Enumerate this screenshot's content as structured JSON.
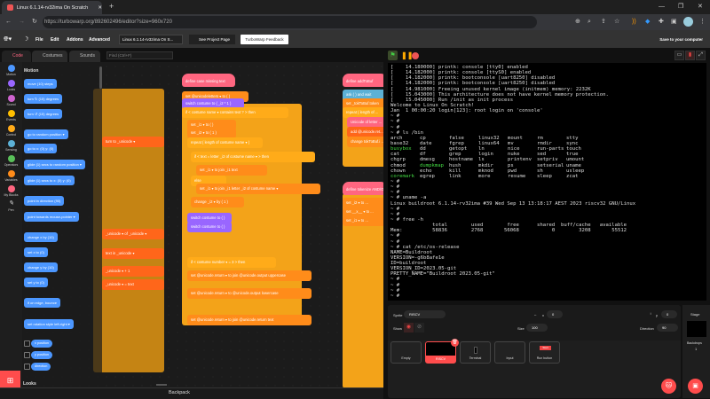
{
  "browser": {
    "tab_title": "Linux 6.1.14-rv32ima On Scratch",
    "url": "https://turbowarp.org/892602496/editor?size=960x720"
  },
  "menubar": {
    "items": [
      "File",
      "Edit",
      "Addons",
      "Advanced"
    ],
    "project_title": "Linux 6.1.14-rv32ima On S...",
    "see_project_page": "See Project Page",
    "feedback": "TurboWarp Feedback",
    "save": "Save to your computer"
  },
  "editor_tabs": [
    "Code",
    "Costumes",
    "Sounds"
  ],
  "find_placeholder": "Find (Ctrl+F)",
  "categories": [
    {
      "label": "Motion",
      "color": "#4c97ff"
    },
    {
      "label": "Looks",
      "color": "#9966ff"
    },
    {
      "label": "Sound",
      "color": "#cf63cf"
    },
    {
      "label": "Events",
      "color": "#ffbf00"
    },
    {
      "label": "Control",
      "color": "#ffab19"
    },
    {
      "label": "Sensing",
      "color": "#5cb1d6"
    },
    {
      "label": "Operators",
      "color": "#59c059"
    },
    {
      "label": "Variables",
      "color": "#ff8c1a"
    },
    {
      "label": "My Blocks",
      "color": "#ff6680"
    },
    {
      "label": "Pen",
      "color": "#0fbd8c"
    }
  ],
  "palette": {
    "section": "Motion",
    "next_section": "Looks",
    "blocks": [
      "move (10) steps",
      "turn ↻ (15) degrees",
      "turn ↺ (15) degrees",
      "go to random position ▾",
      "go to x: (0) y: (0)",
      "glide (1) secs to random position ▾",
      "glide (1) secs to x: (0) y: (0)",
      "point in direction (90)",
      "point towards mouse-pointer ▾",
      "change x by (10)",
      "set x to (0)",
      "change y by (10)",
      "set y to (0)",
      "if on edge, bounce",
      "set rotation style left-right ▾"
    ],
    "reporters": [
      "x position",
      "y position",
      "direction"
    ]
  },
  "code_area": {
    "blocks": [
      {
        "text": "define  case missing  text",
        "category": "custom"
      },
      {
        "text": "set  @unicodeletters ▾  to (  )",
        "category": "variables"
      },
      {
        "text": "switch costume to  ( _i2 * 1 )",
        "category": "looks"
      },
      {
        "text": "if  < costume name ▾  contains  text ? >  then",
        "category": "control"
      },
      {
        "text": "set  _i1 ▾  to (  )",
        "category": "variables"
      },
      {
        "text": "set  _i2 ▾  to ( 1 )",
        "category": "variables"
      },
      {
        "text": "repeat  ( length of  costume name ▾ )",
        "category": "control"
      },
      {
        "text": "if  < text = letter _i2 of costume name ▾ >  then",
        "category": "control"
      },
      {
        "text": "set  _i1 ▾  to  join _i1 text",
        "category": "variables"
      },
      {
        "text": "else",
        "category": "control"
      },
      {
        "text": "set  _i1 ▾  to  join _i1 letter _i2 of costume name ▾",
        "category": "variables"
      },
      {
        "text": "change  _i2 ▾  by ( 1 )",
        "category": "variables"
      },
      {
        "text": "switch costume to  ( )",
        "category": "looks"
      },
      {
        "text": "switch costume to  ( )",
        "category": "looks"
      },
      {
        "text": "if  < costume number ▾ = 3 >  then",
        "category": "control"
      },
      {
        "text": "set  @unicode.return ▾  to  join @unicode.output  uppercase",
        "category": "variables"
      },
      {
        "text": "set  @unicode.return ▾  to  @unicode.output  lowercase",
        "category": "variables"
      },
      {
        "text": "set  @unicode.return ▾  to  join @unicode.return  text",
        "category": "variables"
      },
      {
        "text": "define  addToBuf",
        "category": "custom"
      },
      {
        "text": "ask (  ) and wait",
        "category": "sensing"
      },
      {
        "text": "set  _tokToBuf.token",
        "category": "variables"
      },
      {
        "text": "repeat  ( length of ...",
        "category": "control"
      },
      {
        "text": "Unicode of  letter ...",
        "category": "custom"
      },
      {
        "text": "add  @unicode.ret...",
        "category": "list"
      },
      {
        "text": "change  tokToBuf.i ...",
        "category": "variables"
      },
      {
        "text": "define  tokenize AND/OR",
        "category": "custom"
      },
      {
        "text": "set  _i2 ▾  to ...",
        "category": "variables"
      },
      {
        "text": "set  __x__ ▾  to ...",
        "category": "variables"
      },
      {
        "text": "set  _i1 ▾  to ...",
        "category": "variables"
      },
      {
        "text": "turn  to  _unicode ▾",
        "category": "list"
      },
      {
        "text": "_unicode ▾  of  _unicode ▾",
        "category": "list"
      },
      {
        "text": "text  in  _unicode ▾",
        "category": "list"
      },
      {
        "text": "_unicode ▾  +  1",
        "category": "list"
      },
      {
        "text": "_unicode ▾  =  text",
        "category": "list"
      }
    ],
    "backpack": "Backpack"
  },
  "category_colors": {
    "custom": "#ff6680",
    "variables": "#ff8c1a",
    "looks": "#9966ff",
    "control": "#ffab19",
    "sensing": "#5cb1d6",
    "list": "#ff661a",
    "operators": "#59c059"
  },
  "terminal": {
    "lines": [
      "[    14.180000] printk: console [tty0] enabled",
      "[    14.182000] printk: console [ttyS0] enabled",
      "[    14.182000] printk: bootconsole [uart8250] disabled",
      "[    14.182000] printk: bootconsole [uart8250] disabled",
      "[    14.981000] Freeing unused kernel image (initmem) memory: 2232K",
      "[    15.043000] This architecture does not have kernel memory protection.",
      "[    15.045000] Run /init as init process",
      "Welcome to Linux On Scratch!",
      "Jan  1 00:00:20 login[123]: root login on 'console'",
      "~ #",
      "~ #",
      "~ #",
      "~ # ls /bin",
      {
        "grid": [
          [
            "arch",
            "cp",
            "false",
            "linux32",
            "mount",
            "rm",
            "stty"
          ],
          [
            "base32",
            "date",
            "fgrep",
            "linux64",
            "mv",
            "rmdir",
            "sync"
          ],
          [
            "*busybox",
            "dd",
            "getopt",
            "ln",
            "nice",
            "run-parts",
            "touch"
          ],
          [
            "cat",
            "df",
            "grep",
            "login",
            "nuke",
            "sed",
            "true"
          ],
          [
            "chgrp",
            "dmesg",
            "hostname",
            "ls",
            "printenv",
            "setpriv",
            "umount"
          ],
          [
            "chmod",
            "*dumpkmap",
            "hush",
            "mkdir",
            "ps",
            "setserial",
            "uname"
          ],
          [
            "chown",
            "echo",
            "kill",
            "mknod",
            "pwd",
            "sh",
            "usleep"
          ],
          [
            "*coremark",
            "egrep",
            "link",
            "more",
            "resume",
            "sleep",
            "zcat"
          ]
        ]
      },
      "~ #",
      "~ #",
      "~ #",
      "~ # uname -a",
      "Linux buildroot 6.1.14-rv32ima #39 Wed Sep 13 13:18:17 AEST 2023 riscv32 GNU/Linux",
      "~ #",
      "~ #",
      "~ # free -h",
      "              total        used        free      shared  buff/cache   available",
      "Mem:          58836        2768       56068           0        3208       55512",
      "~ #",
      "~ #",
      "~ # cat /etc/os-release",
      "NAME=Buildroot",
      "VERSION=-g6b8afe1e",
      "ID=buildroot",
      "VERSION_ID=2023.05-git",
      "PRETTY_NAME=\"Buildroot 2023.05-git\"",
      "~ #",
      "~ #",
      "~ #",
      "~ #"
    ]
  },
  "sprite_info": {
    "sprite_label": "Sprite",
    "sprite_name": "RISCV",
    "x_label": "x",
    "x": "0",
    "y_label": "y",
    "y": "0",
    "show_label": "Show",
    "size_label": "Size",
    "size": "100",
    "direction_label": "Direction",
    "direction": "90"
  },
  "sprites": [
    {
      "name": "Empty",
      "selected": false
    },
    {
      "name": "RISCV",
      "selected": true
    },
    {
      "name": "Terminal",
      "selected": false
    },
    {
      "name": "Input",
      "selected": false
    },
    {
      "name": "Run button",
      "selected": false
    }
  ],
  "run_button_costume_text": "Start",
  "stage_panel": {
    "label": "Stage",
    "backdrops_label": "Backdrops",
    "backdrops_count": "1"
  }
}
